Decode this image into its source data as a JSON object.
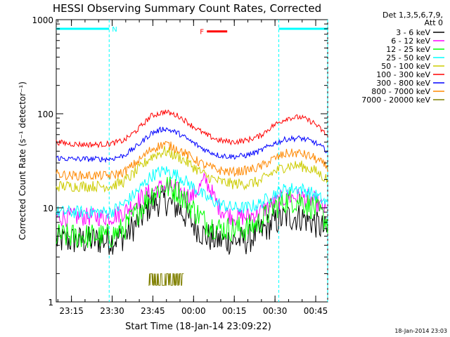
{
  "chart_data": {
    "type": "line",
    "title": "HESSI Observing Summary Count Rates, Corrected",
    "xlabel": "Start Time (18-Jan-14 23:09:22)",
    "ylabel": "Corrected Count Rate (s⁻¹ detector⁻¹)",
    "yscale": "log",
    "ylim": [
      1,
      1000
    ],
    "xlim_minutes": [
      0,
      100
    ],
    "x_unit": "minutes since 23:09:22",
    "yticks": [
      {
        "label": "1",
        "value": 1
      },
      {
        "label": "10",
        "value": 10
      },
      {
        "label": "100",
        "value": 100
      },
      {
        "label": "1000",
        "value": 1000
      }
    ],
    "xticks": [
      {
        "label": "23:15",
        "value": 5.6
      },
      {
        "label": "23:30",
        "value": 20.6
      },
      {
        "label": "23:45",
        "value": 35.6
      },
      {
        "label": "00:00",
        "value": 50.6
      },
      {
        "label": "00:15",
        "value": 65.6
      },
      {
        "label": "00:30",
        "value": 80.6
      },
      {
        "label": "00:45",
        "value": 95.6
      }
    ],
    "legend_header": [
      "Det 1,3,5,6,7,9,",
      "Att 0"
    ],
    "legend_placement": "right",
    "series": [
      {
        "name": "3 - 6 keV",
        "color": "#000000",
        "x": [
          0,
          5,
          10,
          15,
          20,
          25,
          30,
          35,
          40,
          45,
          50,
          55,
          60,
          65,
          70,
          75,
          80,
          85,
          90,
          95,
          100
        ],
        "values": [
          4.5,
          4.5,
          4.5,
          4.5,
          4.5,
          5,
          7,
          11,
          12,
          10,
          7,
          5,
          4.5,
          4.5,
          4.5,
          5.5,
          7,
          8,
          8,
          7,
          5.5
        ]
      },
      {
        "name": "6 - 12 keV",
        "color": "#ff00ff",
        "x": [
          0,
          5,
          10,
          15,
          20,
          25,
          30,
          35,
          40,
          45,
          50,
          55,
          60,
          65,
          70,
          75,
          80,
          85,
          90,
          95,
          100
        ],
        "values": [
          8,
          8,
          8,
          8,
          8,
          9,
          12,
          15,
          17,
          15,
          13,
          20,
          10,
          8,
          8,
          9,
          11,
          13,
          13,
          12,
          9
        ]
      },
      {
        "name": "12 - 25 keV",
        "color": "#00ff00",
        "x": [
          0,
          5,
          10,
          15,
          20,
          25,
          30,
          35,
          40,
          45,
          50,
          55,
          60,
          65,
          70,
          75,
          80,
          85,
          90,
          95,
          100
        ],
        "values": [
          5,
          5,
          5,
          5,
          5,
          6,
          9,
          14,
          17,
          15,
          10,
          7,
          6,
          6,
          6,
          7,
          10,
          12,
          12,
          10,
          7
        ]
      },
      {
        "name": "25 - 50 keV",
        "color": "#00ffff",
        "x": [
          0,
          5,
          10,
          15,
          20,
          25,
          30,
          35,
          40,
          45,
          50,
          55,
          60,
          65,
          70,
          75,
          80,
          85,
          90,
          95,
          100
        ],
        "values": [
          9,
          9,
          9,
          9,
          9,
          11,
          15,
          22,
          25,
          22,
          17,
          13,
          11,
          10,
          10,
          11,
          14,
          16,
          16,
          14,
          11
        ]
      },
      {
        "name": "50 - 100 keV",
        "color": "#cccc00",
        "x": [
          0,
          5,
          10,
          15,
          20,
          25,
          30,
          35,
          40,
          45,
          50,
          55,
          60,
          65,
          70,
          75,
          80,
          85,
          90,
          95,
          100
        ],
        "values": [
          17,
          17,
          17,
          17,
          17,
          19,
          25,
          35,
          40,
          35,
          28,
          22,
          19,
          18,
          18,
          19,
          24,
          28,
          28,
          25,
          20
        ]
      },
      {
        "name": "100 - 300 keV",
        "color": "#ff0000",
        "x": [
          0,
          5,
          10,
          15,
          20,
          25,
          30,
          35,
          40,
          45,
          50,
          55,
          60,
          65,
          70,
          75,
          80,
          85,
          90,
          95,
          100
        ],
        "values": [
          50,
          48,
          47,
          47,
          48,
          52,
          68,
          95,
          105,
          95,
          75,
          60,
          52,
          50,
          52,
          58,
          75,
          90,
          92,
          80,
          58
        ]
      },
      {
        "name": "300 - 800 keV",
        "color": "#0000ff",
        "x": [
          0,
          5,
          10,
          15,
          20,
          25,
          30,
          35,
          40,
          45,
          50,
          55,
          60,
          65,
          70,
          75,
          80,
          85,
          90,
          95,
          100
        ],
        "values": [
          34,
          33,
          33,
          33,
          33,
          36,
          46,
          62,
          70,
          62,
          50,
          41,
          36,
          35,
          36,
          40,
          48,
          54,
          55,
          50,
          40
        ]
      },
      {
        "name": "800 - 7000 keV",
        "color": "#ff8800",
        "x": [
          0,
          5,
          10,
          15,
          20,
          25,
          30,
          35,
          40,
          45,
          50,
          55,
          60,
          65,
          70,
          75,
          80,
          85,
          90,
          95,
          100
        ],
        "values": [
          23,
          22,
          22,
          22,
          22,
          24,
          31,
          42,
          48,
          42,
          34,
          28,
          25,
          24,
          25,
          27,
          33,
          38,
          38,
          34,
          27
        ]
      },
      {
        "name": "7000 - 20000 keV",
        "color": "#808000",
        "x": [
          34,
          35,
          36,
          37,
          38,
          39,
          40,
          41,
          42,
          43,
          44,
          45,
          46,
          47
        ],
        "values": [
          1.6,
          1.8,
          2,
          1.6,
          2,
          1.7,
          2,
          1.8,
          1.6,
          2,
          1.7,
          2,
          1.6,
          1.5
        ]
      }
    ],
    "grid": false,
    "annotations": [
      {
        "label": "N",
        "color": "#00ffff",
        "kind": "night",
        "x_start": -2,
        "x_end": 19.5,
        "y_value": 800
      },
      {
        "label": "F",
        "color": "#ff0000",
        "kind": "flare",
        "x_start": 55.5,
        "x_end": 63,
        "y_value": 750
      },
      {
        "label": "",
        "color": "#00ffff",
        "kind": "night",
        "x_start": 82,
        "x_end": 100,
        "y_value": 800
      }
    ],
    "saa_markers_minutes": [
      19.5,
      82,
      100
    ]
  },
  "footer": {
    "timestamp": "18-Jan-2014 23:03"
  }
}
